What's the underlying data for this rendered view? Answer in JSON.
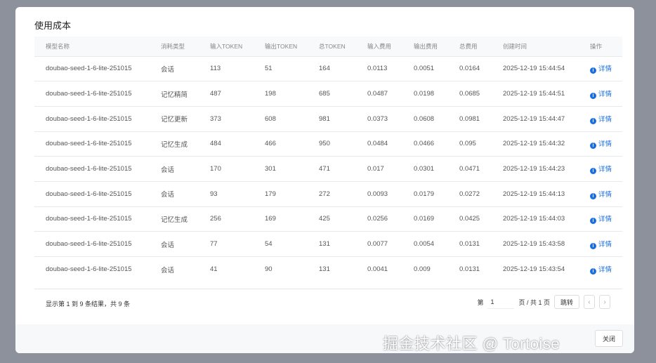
{
  "dialog": {
    "title": "使用成本",
    "close_label": "关闭"
  },
  "table": {
    "headers": [
      "模型名称",
      "消耗类型",
      "输入TOKEN",
      "输出TOKEN",
      "总TOKEN",
      "输入费用",
      "输出费用",
      "总费用",
      "创建时间",
      "操作"
    ],
    "rows": [
      [
        "doubao-seed-1-6-lite-251015",
        "会话",
        "113",
        "51",
        "164",
        "0.0113",
        "0.0051",
        "0.0164",
        "2025-12-19 15:44:54"
      ],
      [
        "doubao-seed-1-6-lite-251015",
        "记忆精简",
        "487",
        "198",
        "685",
        "0.0487",
        "0.0198",
        "0.0685",
        "2025-12-19 15:44:51"
      ],
      [
        "doubao-seed-1-6-lite-251015",
        "记忆更新",
        "373",
        "608",
        "981",
        "0.0373",
        "0.0608",
        "0.0981",
        "2025-12-19 15:44:47"
      ],
      [
        "doubao-seed-1-6-lite-251015",
        "记忆生成",
        "484",
        "466",
        "950",
        "0.0484",
        "0.0466",
        "0.095",
        "2025-12-19 15:44:32"
      ],
      [
        "doubao-seed-1-6-lite-251015",
        "会话",
        "170",
        "301",
        "471",
        "0.017",
        "0.0301",
        "0.0471",
        "2025-12-19 15:44:23"
      ],
      [
        "doubao-seed-1-6-lite-251015",
        "会话",
        "93",
        "179",
        "272",
        "0.0093",
        "0.0179",
        "0.0272",
        "2025-12-19 15:44:13"
      ],
      [
        "doubao-seed-1-6-lite-251015",
        "记忆生成",
        "256",
        "169",
        "425",
        "0.0256",
        "0.0169",
        "0.0425",
        "2025-12-19 15:44:03"
      ],
      [
        "doubao-seed-1-6-lite-251015",
        "会话",
        "77",
        "54",
        "131",
        "0.0077",
        "0.0054",
        "0.0131",
        "2025-12-19 15:43:58"
      ],
      [
        "doubao-seed-1-6-lite-251015",
        "会话",
        "41",
        "90",
        "131",
        "0.0041",
        "0.009",
        "0.0131",
        "2025-12-19 15:43:54"
      ]
    ],
    "action_label": "详情",
    "action_icon": "info-circle-icon"
  },
  "pagination": {
    "summary": "显示第 1 到 9 条结果，共 9 条",
    "page_prefix": "第",
    "page_value": "1",
    "page_suffix": "页 / 共 1 页",
    "jump_label": "跳转",
    "prev": "‹",
    "next": "›"
  },
  "watermark": "掘金技术社区 @ Tortoise",
  "colors": {
    "accent": "#1a6fe0",
    "overlay": "#8d919b"
  }
}
